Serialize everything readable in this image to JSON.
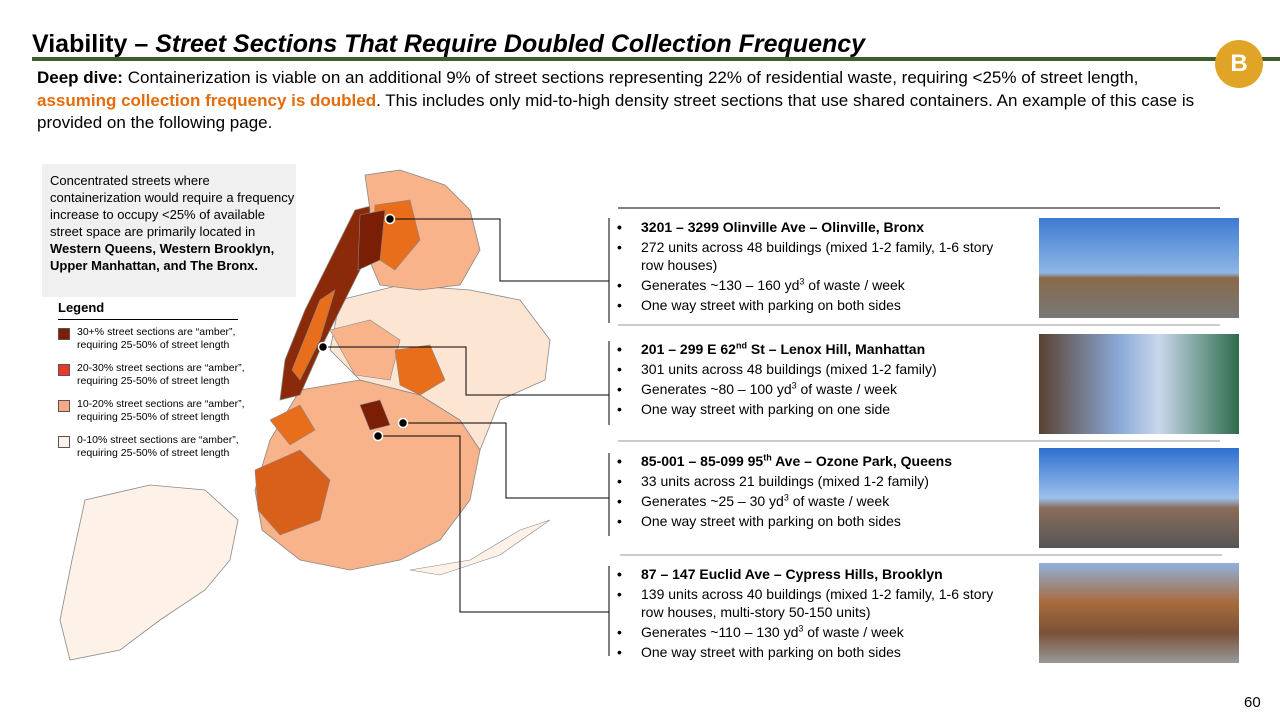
{
  "header": {
    "title_lead": "Viability – ",
    "title_italic": "Street Sections That Require Doubled Collection Frequency",
    "badge": "B"
  },
  "intro": {
    "label": "Deep dive:",
    "text_1": " Containerization is viable on an additional 9% of street sections representing 22% of residential waste, requiring <25% of street length, ",
    "highlight": "assuming collection frequency is doubled",
    "text_2": ". This includes only mid-to-high density street sections that use shared containers. An example of this case is provided on the following page."
  },
  "callout": {
    "text": "Concentrated streets where containerization would require a frequency increase to occupy <25% of available street space are primarily located in ",
    "bold": "Western Queens, Western Brooklyn, Upper Manhattan, and The Bronx."
  },
  "legend": {
    "title": "Legend",
    "items": [
      {
        "line_1": "30+% street sections are “amber”,",
        "line_2": "requiring 25-50% of street length"
      },
      {
        "line_1": "20-30% street sections are “amber”,",
        "line_2": "requiring 25-50% of street length"
      },
      {
        "line_1": "10-20% street sections are “amber”,",
        "line_2": "requiring 25-50% of street length"
      },
      {
        "line_1": "0-10% street sections are “amber”,",
        "line_2": "requiring 25-50% of street length"
      }
    ]
  },
  "cases": [
    {
      "title": {
        "pre": "3201 – 3299 Olinville Ave – Olinville, Bronx"
      },
      "units": "272 units across 48 buildings (mixed 1-2 family, 1-6 story row houses)",
      "generates": {
        "pre": "Generates ~130 – 160 yd",
        "sup": "3",
        "post": " of waste / week"
      },
      "street": "One way street with parking on both sides"
    },
    {
      "title": {
        "pre": "201 – 299 E 62",
        "sup": "nd",
        "post": " St – Lenox Hill, Manhattan"
      },
      "units": "301 units across 48 buildings (mixed 1-2 family)",
      "generates": {
        "pre": "Generates ~80 – 100 yd",
        "sup": "3",
        "post": " of waste / week"
      },
      "street": "One way street with parking on one side"
    },
    {
      "title": {
        "pre": "85-001 – 85-099 95",
        "sup": "th",
        "post": " Ave – Ozone Park, Queens"
      },
      "units": "33 units across 21 buildings (mixed 1-2 family)",
      "generates": {
        "pre": "Generates ~25 – 30 yd",
        "sup": "3",
        "post": " of waste / week"
      },
      "street": "One way street with parking on both sides"
    },
    {
      "title": {
        "pre": "87 – 147 Euclid Ave – Cypress Hills, Brooklyn"
      },
      "units": "139 units across 40 buildings (mixed 1-2 family, 1-6 story row houses, multi-story 50-150 units)",
      "generates": {
        "pre": "Generates ~110 – 130 yd",
        "sup": "3",
        "post": " of waste / week"
      },
      "street": "One way street with parking on both sides"
    }
  ],
  "page_number": "60"
}
